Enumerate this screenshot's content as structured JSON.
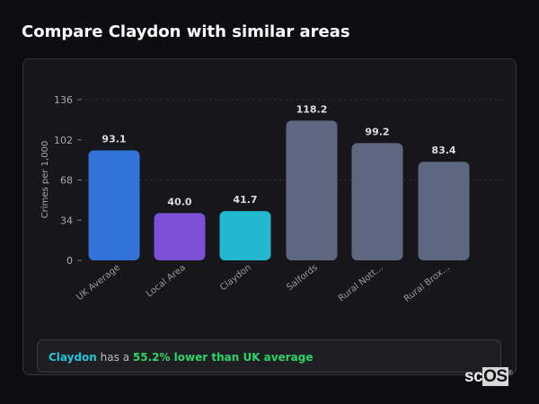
{
  "title": "Compare Claydon with similar areas",
  "summary": {
    "area": "Claydon",
    "text": " has a ",
    "highlight": "55.2% lower than UK average"
  },
  "logo": {
    "prefix": "sc",
    "box": "OS",
    "mark": "®"
  },
  "chart_data": {
    "type": "bar",
    "ylabel": "Crimes per 1,000",
    "ylim": [
      0,
      136
    ],
    "yticks": [
      0,
      34,
      68,
      102,
      136
    ],
    "categories": [
      "UK Average",
      "Local Area",
      "Claydon",
      "Salfords",
      "Rural Nott...",
      "Rural Brox..."
    ],
    "values": [
      93.1,
      40.0,
      41.7,
      118.2,
      99.2,
      83.4
    ],
    "labels": [
      "93.1",
      "40.0",
      "41.7",
      "118.2",
      "99.2",
      "83.4"
    ],
    "colors": [
      "#3373d9",
      "#7b4fd6",
      "#22b8cf",
      "#5d6880",
      "#5d6880",
      "#5d6880"
    ]
  }
}
